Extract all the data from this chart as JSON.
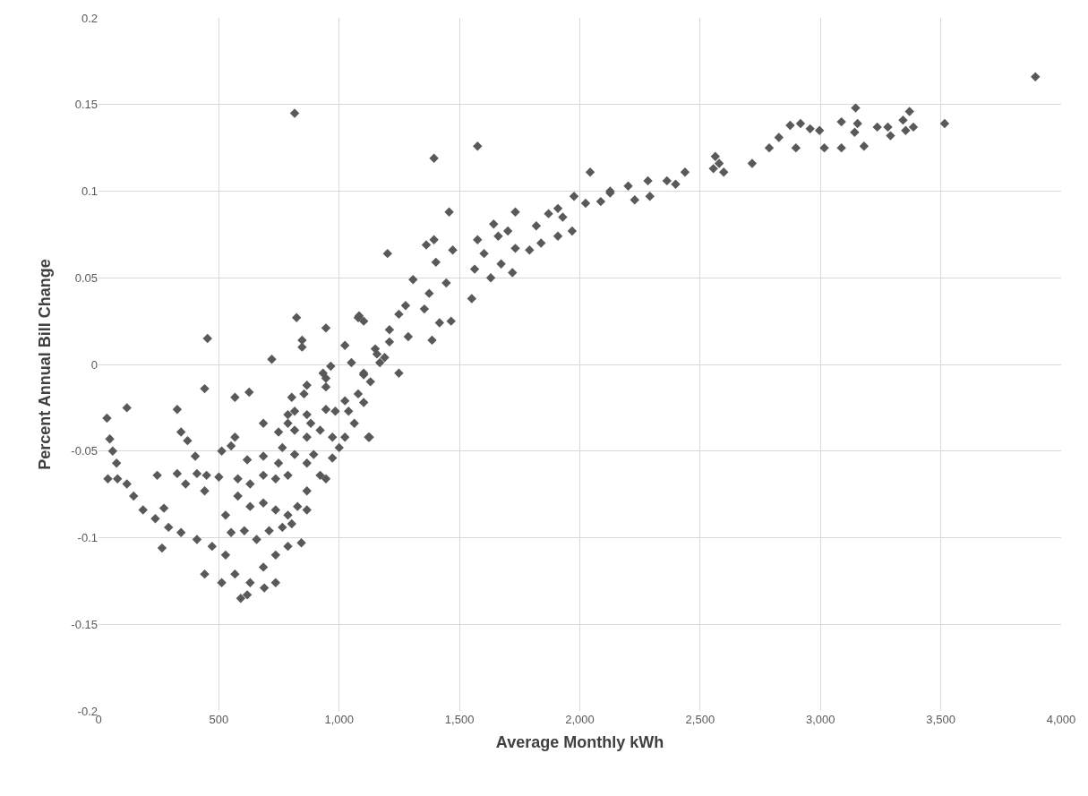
{
  "chart_data": {
    "type": "scatter",
    "xlabel": "Average Monthly kWh",
    "ylabel": "Percent Annual Bill Change",
    "x": [
      3893,
      3146,
      3370,
      3516,
      2874,
      2917,
      2957,
      2996,
      3087,
      3154,
      3142,
      3236,
      3280,
      3291,
      3343,
      3354,
      3386,
      2898,
      3016,
      3087,
      3181,
      2827,
      2787,
      2716,
      2563,
      2555,
      2579,
      2598,
      2437,
      2398,
      2362,
      2283,
      2291,
      2201,
      2228,
      2126,
      2087,
      815,
      1394,
      1575,
      2043,
      1976,
      2126,
      2024,
      1909,
      1870,
      1929,
      1968,
      1909,
      1732,
      1819,
      1839,
      1791,
      1732,
      1701,
      1642,
      1661,
      1602,
      1575,
      1457,
      1394,
      1362,
      1472,
      1402,
      1201,
      1673,
      1720,
      1563,
      1102,
      1083,
      1307,
      1374,
      1445,
      1551,
      1465,
      1386,
      1276,
      1248,
      1209,
      1287,
      1150,
      1189,
      1248,
      1102,
      1122,
      1354,
      1630,
      1417,
      35,
      118,
      453,
      441,
      327,
      343,
      370,
      567,
      626,
      720,
      823,
      846,
      846,
      945,
      1079,
      1024,
      965,
      1051,
      1126,
      945,
      854,
      803,
      787,
      748,
      685,
      567,
      551,
      512,
      402,
      244,
      327,
      409,
      362,
      449,
      500,
      441,
      47,
      59,
      75,
      39,
      79,
      118,
      146,
      185,
      236,
      272,
      291,
      264,
      343,
      409,
      472,
      528,
      441,
      512,
      567,
      591,
      618,
      630,
      689,
      736,
      843,
      736,
      685,
      657,
      606,
      551,
      709,
      764,
      787,
      736,
      685,
      630,
      579,
      528,
      630,
      579,
      685,
      736,
      787,
      748,
      685,
      618,
      764,
      815,
      866,
      921,
      866,
      827,
      803,
      787,
      866,
      945,
      1000,
      972,
      921,
      866,
      882,
      815,
      787,
      815,
      866,
      945,
      1039,
      1079,
      1024,
      1130,
      1102,
      1063,
      1024,
      984,
      945,
      933,
      866,
      972,
      894,
      1102,
      1169,
      1209,
      1157
    ],
    "values": [
      0.166,
      0.148,
      0.146,
      0.139,
      0.138,
      0.139,
      0.136,
      0.135,
      0.14,
      0.139,
      0.134,
      0.137,
      0.137,
      0.132,
      0.141,
      0.135,
      0.137,
      0.125,
      0.125,
      0.125,
      0.126,
      0.131,
      0.125,
      0.116,
      0.12,
      0.113,
      0.116,
      0.111,
      0.111,
      0.104,
      0.106,
      0.106,
      0.097,
      0.103,
      0.095,
      0.099,
      0.094,
      0.145,
      0.119,
      0.126,
      0.111,
      0.097,
      0.1,
      0.093,
      0.09,
      0.087,
      0.085,
      0.077,
      0.074,
      0.088,
      0.08,
      0.07,
      0.066,
      0.067,
      0.077,
      0.081,
      0.074,
      0.064,
      0.072,
      0.088,
      0.072,
      0.069,
      0.066,
      0.059,
      0.064,
      0.058,
      0.053,
      0.055,
      0.025,
      0.028,
      0.049,
      0.041,
      0.047,
      0.038,
      0.025,
      0.014,
      0.034,
      0.029,
      0.02,
      0.016,
      0.009,
      0.004,
      -0.005,
      -0.005,
      -0.042,
      0.032,
      0.05,
      0.024,
      -0.031,
      -0.025,
      0.015,
      -0.014,
      -0.026,
      -0.039,
      -0.044,
      -0.019,
      -0.016,
      0.003,
      0.027,
      0.014,
      0.01,
      0.021,
      0.027,
      0.011,
      -0.001,
      0.001,
      -0.042,
      -0.008,
      -0.017,
      -0.019,
      -0.029,
      -0.039,
      -0.034,
      -0.042,
      -0.047,
      -0.05,
      -0.053,
      -0.064,
      -0.063,
      -0.063,
      -0.069,
      -0.064,
      -0.065,
      -0.073,
      -0.043,
      -0.05,
      -0.057,
      -0.066,
      -0.066,
      -0.069,
      -0.076,
      -0.084,
      -0.089,
      -0.083,
      -0.094,
      -0.106,
      -0.097,
      -0.101,
      -0.105,
      -0.11,
      -0.121,
      -0.126,
      -0.121,
      -0.135,
      -0.133,
      -0.126,
      -0.129,
      -0.126,
      -0.103,
      -0.11,
      -0.117,
      -0.101,
      -0.096,
      -0.097,
      -0.096,
      -0.094,
      -0.087,
      -0.084,
      -0.08,
      -0.082,
      -0.076,
      -0.087,
      -0.069,
      -0.066,
      -0.064,
      -0.066,
      -0.064,
      -0.057,
      -0.053,
      -0.055,
      -0.048,
      -0.052,
      -0.057,
      -0.064,
      -0.073,
      -0.082,
      -0.092,
      -0.105,
      -0.084,
      -0.066,
      -0.048,
      -0.042,
      -0.038,
      -0.042,
      -0.034,
      -0.038,
      -0.034,
      -0.027,
      -0.029,
      -0.026,
      -0.027,
      -0.017,
      -0.021,
      -0.01,
      -0.022,
      -0.034,
      -0.042,
      -0.027,
      -0.013,
      -0.005,
      -0.012,
      -0.054,
      -0.052,
      -0.006,
      0.001,
      0.013,
      0.006
    ],
    "color": "#595959",
    "marker": "diamond",
    "grid": true,
    "xlim": [
      0,
      4000
    ],
    "xticks": [
      0,
      500,
      {
        "value": 1000,
        "label": "1,000"
      },
      {
        "value": 1500,
        "label": "1,500"
      },
      {
        "value": 2000,
        "label": "2,000"
      },
      {
        "value": 2500,
        "label": "2,500"
      },
      {
        "value": 3000,
        "label": "3,000"
      },
      {
        "value": 3500,
        "label": "3,500"
      },
      {
        "value": 4000,
        "label": "4,000"
      }
    ],
    "ylim": [
      -0.2,
      0.2
    ],
    "yticks": [
      -0.2,
      -0.15,
      -0.1,
      -0.05,
      0,
      0.05,
      0.1,
      0.15,
      0.2
    ]
  }
}
